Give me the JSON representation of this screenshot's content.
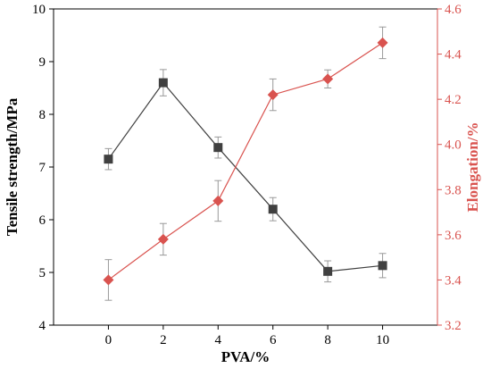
{
  "chart_data": {
    "type": "line",
    "title": "",
    "xlabel": "PVA/%",
    "ylabel_left": "Tensile strength/MPa",
    "ylabel_right": "Elongation/%",
    "x": [
      0,
      2,
      4,
      6,
      8,
      10
    ],
    "xlim": [
      -2,
      12
    ],
    "ylim_left": [
      4,
      10
    ],
    "ylim_right": [
      3.2,
      4.6
    ],
    "x_ticks": [
      "0",
      "2",
      "4",
      "6",
      "8",
      "10"
    ],
    "y_left_ticks": [
      "4",
      "5",
      "6",
      "7",
      "8",
      "9",
      "10"
    ],
    "y_right_ticks": [
      "3.2",
      "3.4",
      "3.6",
      "3.8",
      "4.0",
      "4.2",
      "4.4",
      "4.6"
    ],
    "grid": false,
    "series": [
      {
        "axis": "left",
        "marker": "square",
        "color": "#404040",
        "values": [
          7.15,
          8.6,
          7.37,
          6.2,
          5.02,
          5.13
        ],
        "errors": [
          0.2,
          0.25,
          0.2,
          0.22,
          0.2,
          0.23
        ]
      },
      {
        "axis": "right",
        "marker": "diamond",
        "color": "#d9534f",
        "values": [
          3.4,
          3.58,
          3.75,
          4.22,
          4.29,
          4.45
        ],
        "errors": [
          0.09,
          0.07,
          0.09,
          0.07,
          0.04,
          0.07
        ]
      }
    ]
  }
}
